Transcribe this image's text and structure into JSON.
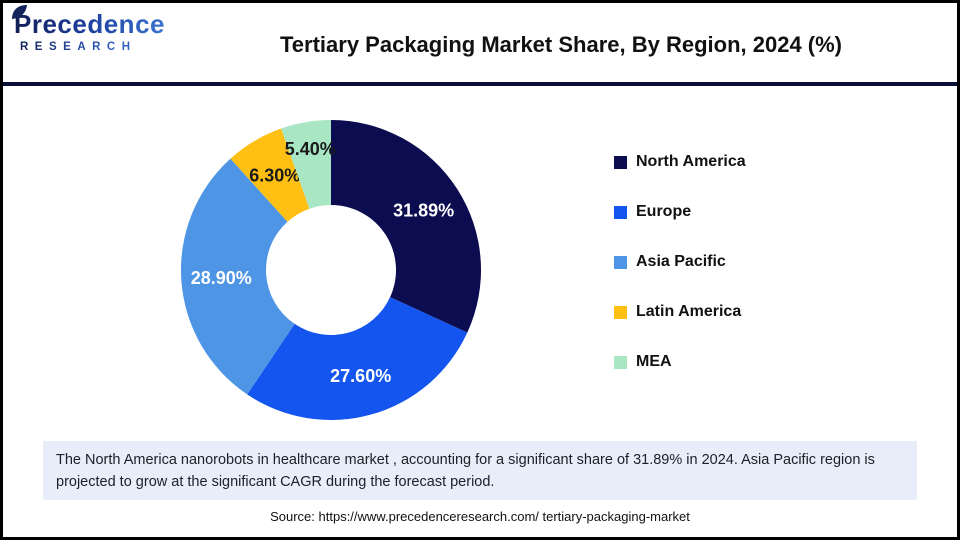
{
  "header": {
    "logo": {
      "brand": "Precedence",
      "sub": "RESEARCH"
    },
    "title": "Tertiary Packaging Market Share, By Region, 2024 (%)"
  },
  "chart_data": {
    "type": "pie",
    "subtype": "donut",
    "title": "Tertiary Packaging Market Share, By Region, 2024 (%)",
    "categories": [
      "North America",
      "Europe",
      "Asia Pacific",
      "Latin America",
      "MEA"
    ],
    "values": [
      31.89,
      27.6,
      28.9,
      6.3,
      5.4
    ],
    "labels": [
      "31.89%",
      "27.60%",
      "28.90%",
      "6.30%",
      "5.40%"
    ],
    "colors": [
      "#0C0C50",
      "#1355EE",
      "#4E95E5",
      "#FFC013",
      "#A9E7C4"
    ],
    "label_colors": [
      "#FFFFFF",
      "#FFFFFF",
      "#FFFFFF",
      "#1A1A1A",
      "#1A1A1A"
    ],
    "label_radii": [
      110,
      110,
      110,
      110,
      123
    ],
    "start_angle_deg": 0,
    "direction": "clockwise",
    "inner_radius": 65,
    "outer_radius": 150,
    "legend_position": "right",
    "grid": false
  },
  "note": {
    "text": "The North America nanorobots in healthcare market , accounting for a significant share of 31.89% in 2024. Asia Pacific region is projected to grow at the significant CAGR during the forecast period.",
    "background": "#E7EEF9"
  },
  "source": {
    "text": "Source: https://www.precedenceresearch.com/ tertiary-packaging-market"
  },
  "theme": {
    "divider_color": "#0A0E36",
    "brand_navy": "#14245C",
    "brand_blue": "#3E7BD3"
  }
}
